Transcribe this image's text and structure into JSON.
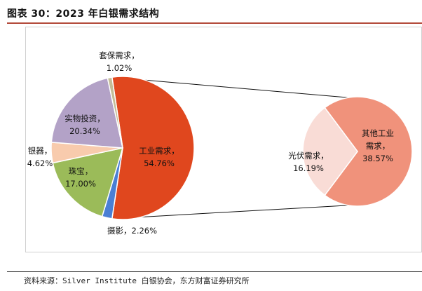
{
  "figure": {
    "title": "图表 30：2023 年白银需求结构",
    "source": "资料来源：Silver Institute 白银协会，东方财富证券研究所"
  },
  "chart_data": [
    {
      "type": "pie",
      "title": "",
      "unit": "%",
      "slices": [
        {
          "label": "工业需求",
          "value": 54.76,
          "display": "54.76%",
          "color": "#e0471e"
        },
        {
          "label": "摄影",
          "value": 2.26,
          "display": "2.26%",
          "color": "#4a7fd4"
        },
        {
          "label": "珠宝",
          "value": 17.0,
          "display": "17.00%",
          "color": "#9bbb59"
        },
        {
          "label": "银器",
          "value": 4.62,
          "display": "4.62%",
          "color": "#f8cbad"
        },
        {
          "label": "实物投资",
          "value": 20.34,
          "display": "20.34%",
          "color": "#b3a2c7"
        },
        {
          "label": "套保需求",
          "value": 1.02,
          "display": "1.02%",
          "color": "#c4bd97"
        }
      ]
    },
    {
      "type": "pie",
      "title": "",
      "unit": "%",
      "parent_slice": "工业需求",
      "slices": [
        {
          "label": "其他工业需求",
          "value": 38.57,
          "display": "38.57%",
          "color": "#f0927b"
        },
        {
          "label": "光伏需求",
          "value": 16.19,
          "display": "16.19%",
          "color": "#f9dcd6"
        }
      ]
    }
  ]
}
